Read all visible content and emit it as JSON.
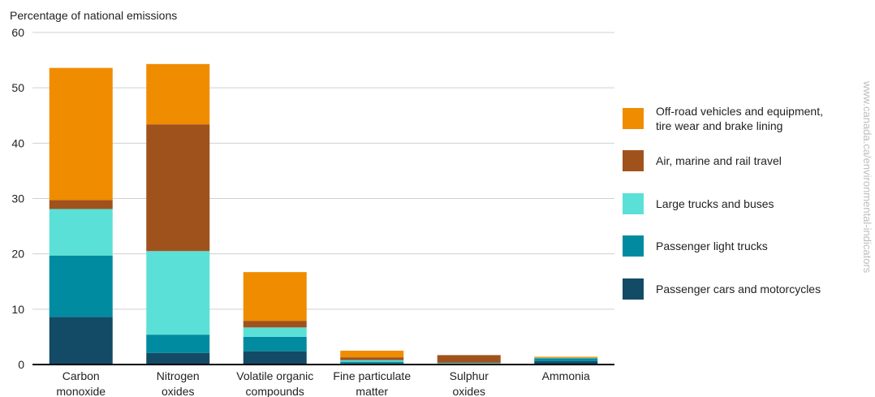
{
  "chart_data": {
    "type": "bar",
    "stacked": true,
    "ylabel": "Percentage of national emissions",
    "ylim": [
      0,
      60
    ],
    "yticks": [
      0,
      10,
      20,
      30,
      40,
      50,
      60
    ],
    "grid": true,
    "legend_position": "right",
    "categories": [
      [
        "Carbon",
        "monoxide"
      ],
      [
        "Nitrogen",
        "oxides"
      ],
      [
        "Volatile organic",
        "compounds"
      ],
      [
        "Fine particulate",
        "matter"
      ],
      [
        "Sulphur",
        "oxides"
      ],
      [
        "Ammonia"
      ]
    ],
    "series": [
      {
        "name": "Passenger cars and motorcycles",
        "color": "#134b66",
        "values": [
          8.6,
          2.1,
          2.4,
          0.2,
          0.1,
          0.6
        ]
      },
      {
        "name": "Passenger light trucks",
        "color": "#008ba0",
        "values": [
          11.1,
          3.3,
          2.6,
          0.3,
          0.1,
          0.5
        ]
      },
      {
        "name": "Large trucks and buses",
        "color": "#5be0d8",
        "values": [
          8.4,
          15.1,
          1.7,
          0.3,
          0.1,
          0.1
        ]
      },
      {
        "name": "Air, marine and rail travel",
        "color": "#a0521d",
        "values": [
          1.6,
          22.9,
          1.2,
          0.5,
          1.4,
          0.0
        ]
      },
      {
        "name": [
          "Off-road vehicles and equipment,",
          "tire wear and brake lining"
        ],
        "color": "#f08c00",
        "values": [
          23.9,
          10.9,
          8.8,
          1.2,
          0.0,
          0.2
        ]
      }
    ]
  },
  "source_text": "www.canada.ca/environmental-indicators"
}
